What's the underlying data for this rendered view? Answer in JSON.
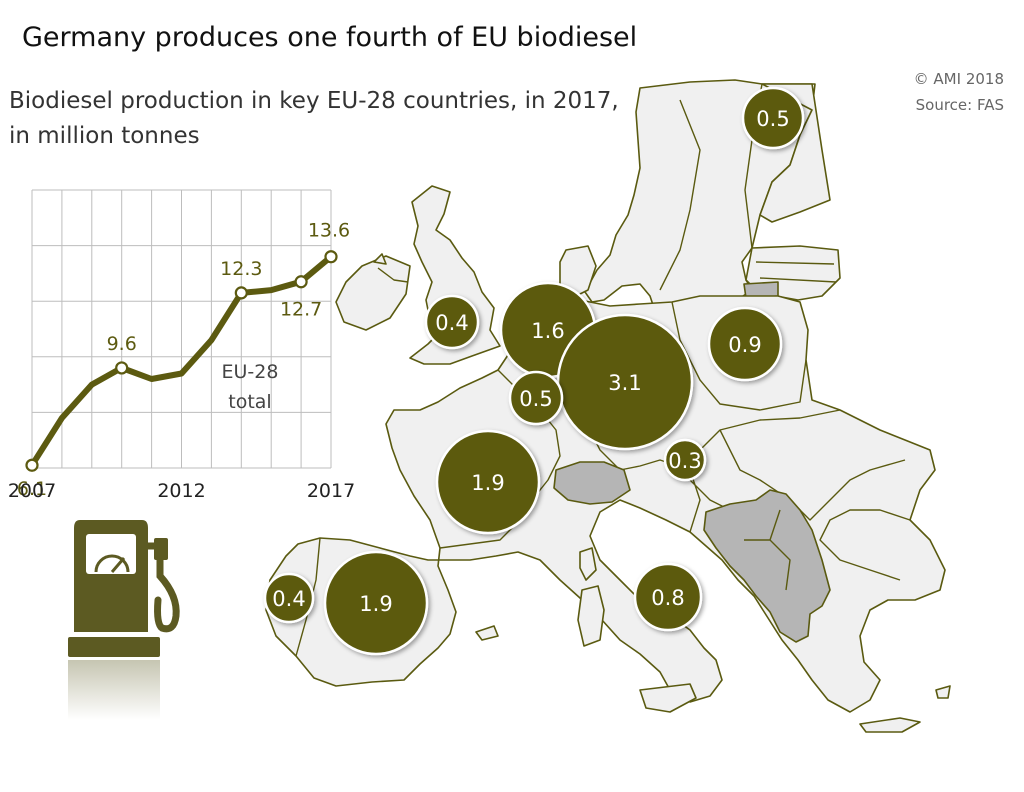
{
  "title": "Germany produces one fourth of EU biodiesel",
  "subtitle_line1": "Biodiesel production in key EU-28 countries, in 2017,",
  "subtitle_line2": "in million tonnes",
  "credits": {
    "copyright": "© AMI 2018",
    "source": "Source: FAS"
  },
  "colors": {
    "accent": "#5c5a10",
    "land": "#f0f0f0",
    "non_member": "#b5b5b5",
    "border": "#5a5a10"
  },
  "map_bubbles": [
    {
      "country": "Finland",
      "value": 0.5,
      "label": "0.5"
    },
    {
      "country": "United Kingdom",
      "value": 0.4,
      "label": "0.4"
    },
    {
      "country": "Netherlands",
      "value": 1.6,
      "label": "1.6"
    },
    {
      "country": "Poland",
      "value": 0.9,
      "label": "0.9"
    },
    {
      "country": "Belgium",
      "value": 0.5,
      "label": "0.5"
    },
    {
      "country": "Germany",
      "value": 3.1,
      "label": "3.1"
    },
    {
      "country": "Austria",
      "value": 0.3,
      "label": "0.3"
    },
    {
      "country": "France",
      "value": 1.9,
      "label": "1.9"
    },
    {
      "country": "Portugal",
      "value": 0.4,
      "label": "0.4"
    },
    {
      "country": "Spain",
      "value": 1.9,
      "label": "1.9"
    },
    {
      "country": "Italy",
      "value": 0.8,
      "label": "0.8"
    }
  ],
  "chart_data": {
    "type": "line",
    "x": [
      2007,
      2008,
      2009,
      2010,
      2011,
      2012,
      2013,
      2014,
      2015,
      2016,
      2017
    ],
    "values": [
      6.1,
      7.8,
      9.0,
      9.6,
      9.2,
      9.4,
      10.6,
      12.3,
      12.4,
      12.7,
      13.6
    ],
    "labeled_points": [
      {
        "x": 2007,
        "label": "6.1"
      },
      {
        "x": 2010,
        "label": "9.6"
      },
      {
        "x": 2014,
        "label": "12.3"
      },
      {
        "x": 2016,
        "label": "12.7"
      },
      {
        "x": 2017,
        "label": "13.6"
      }
    ],
    "x_tick_labels": [
      {
        "x": 2007,
        "label": "2007"
      },
      {
        "x": 2012,
        "label": "2012"
      },
      {
        "x": 2017,
        "label": "2017"
      }
    ],
    "ylim": [
      6,
      16
    ],
    "grid": true,
    "annotation_line1": "EU-28",
    "annotation_line2": "total"
  },
  "icons": [
    "fuel-pump-icon"
  ]
}
